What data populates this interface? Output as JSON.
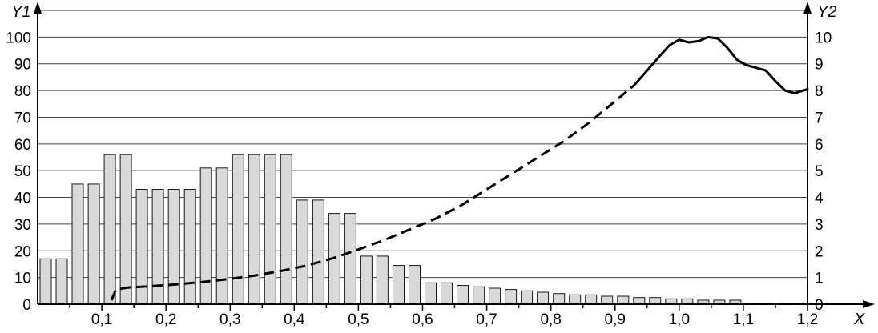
{
  "chart_data": {
    "type": "bar",
    "description": "Histogram of values on left axis Y1 with an overlaid curve (dashed then solid) read on right axis Y2",
    "x_axis": {
      "label": "X",
      "min": 0,
      "max": 1.2,
      "major_tick_step": 0.1,
      "minor_tick_step": 0.05,
      "tick_labels": [
        "0,1",
        "0,2",
        "0,3",
        "0,4",
        "0,5",
        "0,6",
        "0,7",
        "0,8",
        "0,9",
        "1,0",
        "1,1",
        "1,2"
      ]
    },
    "y1_axis": {
      "label": "Y1",
      "min": 0,
      "max": 100,
      "tick_step": 10,
      "tick_labels": [
        "0",
        "10",
        "20",
        "30",
        "40",
        "50",
        "60",
        "70",
        "80",
        "90",
        "100"
      ],
      "top_frame_value": 110,
      "grid": true
    },
    "y2_axis": {
      "label": "Y2",
      "min": 0,
      "max": 10,
      "tick_step": 1,
      "tick_labels": [
        "0",
        "1",
        "2",
        "3",
        "4",
        "5",
        "6",
        "7",
        "8",
        "9",
        "10"
      ]
    },
    "bars": {
      "axis": "y1",
      "pitch": 0.025,
      "x_start": 0,
      "values": [
        17,
        17,
        45,
        45,
        56,
        56,
        43,
        43,
        43,
        43,
        51,
        51,
        56,
        56,
        56,
        56,
        39,
        39,
        34,
        34,
        18,
        18,
        14.5,
        14.5,
        8,
        8,
        7,
        6.5,
        6,
        5.5,
        5,
        4.5,
        4,
        3.5,
        3.5,
        3,
        3,
        2.5,
        2.5,
        2,
        2,
        1.5,
        1.5,
        1.5
      ]
    },
    "curve": {
      "axis": "y2",
      "dashed_points": [
        [
          0.115,
          0.15
        ],
        [
          0.122,
          0.55
        ],
        [
          0.14,
          0.62
        ],
        [
          0.18,
          0.68
        ],
        [
          0.22,
          0.75
        ],
        [
          0.26,
          0.84
        ],
        [
          0.3,
          0.95
        ],
        [
          0.34,
          1.08
        ],
        [
          0.38,
          1.25
        ],
        [
          0.42,
          1.45
        ],
        [
          0.46,
          1.72
        ],
        [
          0.5,
          2.05
        ],
        [
          0.54,
          2.4
        ],
        [
          0.58,
          2.8
        ],
        [
          0.62,
          3.2
        ],
        [
          0.66,
          3.7
        ],
        [
          0.7,
          4.3
        ],
        [
          0.74,
          4.9
        ],
        [
          0.78,
          5.5
        ],
        [
          0.82,
          6.1
        ],
        [
          0.86,
          6.8
        ],
        [
          0.9,
          7.6
        ],
        [
          0.93,
          8.2
        ]
      ],
      "solid_points": [
        [
          0.93,
          8.2
        ],
        [
          0.95,
          8.75
        ],
        [
          0.97,
          9.3
        ],
        [
          0.985,
          9.7
        ],
        [
          1.0,
          9.9
        ],
        [
          1.015,
          9.8
        ],
        [
          1.03,
          9.85
        ],
        [
          1.045,
          10.0
        ],
        [
          1.06,
          9.95
        ],
        [
          1.075,
          9.6
        ],
        [
          1.09,
          9.15
        ],
        [
          1.105,
          8.95
        ],
        [
          1.12,
          8.85
        ],
        [
          1.135,
          8.75
        ],
        [
          1.15,
          8.35
        ],
        [
          1.165,
          8.0
        ],
        [
          1.18,
          7.9
        ],
        [
          1.2,
          8.05
        ]
      ]
    },
    "legend": null,
    "colors": {
      "bar_fill": "#d9d9d9",
      "bar_stroke": "#1a1a1a",
      "line": "#000000",
      "grid": "#444444",
      "axis": "#000000",
      "background": "#ffffff"
    }
  }
}
